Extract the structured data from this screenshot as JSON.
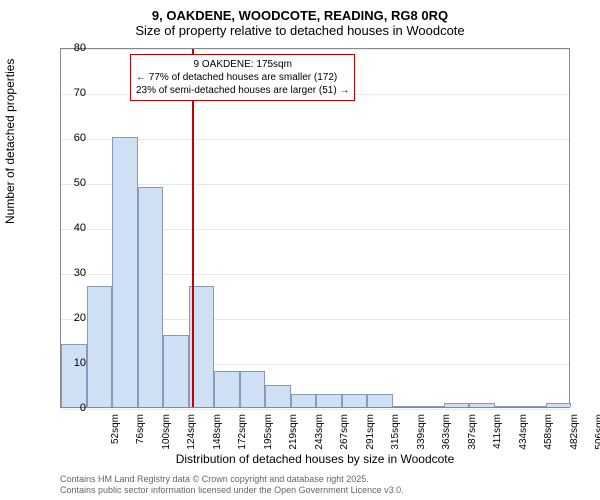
{
  "title_line1": "9, OAKDENE, WOODCOTE, READING, RG8 0RQ",
  "title_line2": "Size of property relative to detached houses in Woodcote",
  "ylabel": "Number of detached properties",
  "xlabel": "Distribution of detached houses by size in Woodcote",
  "footer_line1": "Contains HM Land Registry data © Crown copyright and database right 2025.",
  "footer_line2": "Contains public sector information licensed under the Open Government Licence v3.0.",
  "chart": {
    "type": "histogram",
    "ylim": [
      0,
      80
    ],
    "ytick_step": 10,
    "xticks": [
      "52sqm",
      "76sqm",
      "100sqm",
      "124sqm",
      "148sqm",
      "172sqm",
      "195sqm",
      "219sqm",
      "243sqm",
      "267sqm",
      "291sqm",
      "315sqm",
      "339sqm",
      "363sqm",
      "387sqm",
      "411sqm",
      "434sqm",
      "458sqm",
      "482sqm",
      "506sqm",
      "530sqm"
    ],
    "values": [
      14,
      27,
      60,
      49,
      16,
      27,
      8,
      8,
      5,
      3,
      3,
      3,
      3,
      0,
      0,
      1,
      1,
      0,
      0,
      1
    ],
    "bar_fill": "#cfe0f5",
    "bar_stroke": "#8899bb",
    "background": "#ffffff",
    "grid_color": "#e8e8e8",
    "reference_line": {
      "position_index": 5.15,
      "color": "#c40000"
    },
    "annotation": {
      "border_color": "#c40000",
      "line1": "9 OAKDENE: 175sqm",
      "line2": "← 77% of detached houses are smaller (172)",
      "line3": "23% of semi-detached houses are larger (51) →"
    }
  }
}
